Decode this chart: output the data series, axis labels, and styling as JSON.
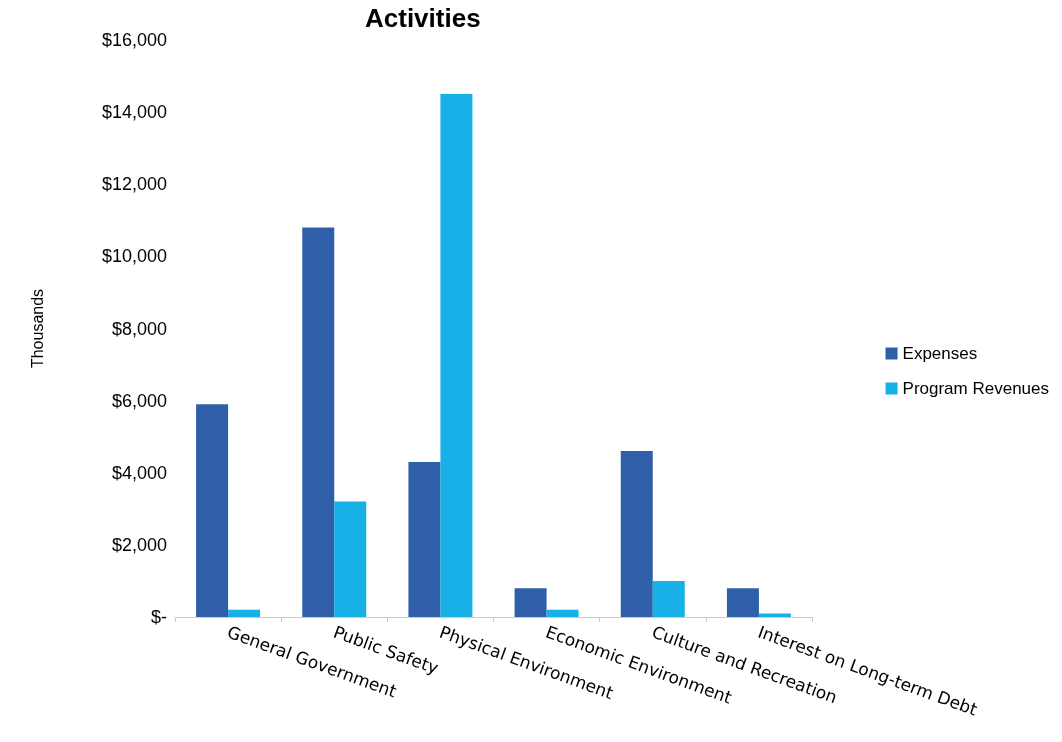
{
  "chart_data": {
    "type": "bar",
    "title": "Activities",
    "ylabel": "Thousands",
    "categories": [
      "General Government",
      "Public Safety",
      "Physical Environment",
      "Economic Environment",
      "Culture and Recreation",
      "Interest on Long-term Debt"
    ],
    "series": [
      {
        "name": "Expenses",
        "color": "#2e5fa8",
        "values": [
          5900,
          10800,
          4300,
          800,
          4600,
          800
        ]
      },
      {
        "name": "Program Revenues",
        "color": "#17b1e8",
        "values": [
          200,
          3200,
          14500,
          200,
          1000,
          100
        ]
      }
    ],
    "ylim": [
      0,
      16000
    ],
    "yticks": [
      {
        "value": 0,
        "label": "$-"
      },
      {
        "value": 2000,
        "label": "$2,000"
      },
      {
        "value": 4000,
        "label": "$4,000"
      },
      {
        "value": 6000,
        "label": "$6,000"
      },
      {
        "value": 8000,
        "label": "$8,000"
      },
      {
        "value": 10000,
        "label": "$10,000"
      },
      {
        "value": 12000,
        "label": "$12,000"
      },
      {
        "value": 14000,
        "label": "$14,000"
      },
      {
        "value": 16000,
        "label": "$16,000"
      }
    ],
    "grid": false,
    "legend": "right"
  }
}
